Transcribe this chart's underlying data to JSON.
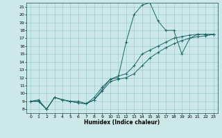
{
  "xlabel": "Humidex (Indice chaleur)",
  "bg_color": "#cce8ea",
  "grid_color": "#99cccc",
  "line_color": "#1a6666",
  "xlim": [
    -0.5,
    23.5
  ],
  "ylim": [
    7.5,
    21.5
  ],
  "xticks": [
    0,
    1,
    2,
    3,
    4,
    5,
    6,
    7,
    8,
    9,
    10,
    11,
    12,
    13,
    14,
    15,
    16,
    17,
    18,
    19,
    20,
    21,
    22,
    23
  ],
  "yticks": [
    8,
    9,
    10,
    11,
    12,
    13,
    14,
    15,
    16,
    17,
    18,
    19,
    20,
    21
  ],
  "series": [
    {
      "x": [
        0,
        1,
        2,
        3,
        4,
        5,
        6,
        7,
        8,
        9,
        10,
        11,
        12,
        13,
        14,
        15,
        16,
        17,
        18,
        19,
        20,
        21,
        22,
        23
      ],
      "y": [
        9.0,
        9.2,
        8.0,
        9.5,
        9.2,
        9.0,
        9.0,
        8.7,
        9.2,
        10.5,
        11.8,
        12.0,
        16.5,
        20.0,
        21.2,
        21.5,
        19.2,
        18.0,
        18.0,
        15.0,
        17.0,
        17.5,
        17.5,
        17.5
      ]
    },
    {
      "x": [
        0,
        1,
        2,
        3,
        4,
        5,
        6,
        7,
        8,
        9,
        10,
        11,
        12,
        13,
        14,
        15,
        16,
        17,
        18,
        19,
        20,
        21,
        22,
        23
      ],
      "y": [
        9.0,
        9.0,
        8.0,
        9.5,
        9.2,
        9.0,
        8.8,
        8.7,
        9.2,
        10.3,
        11.5,
        11.8,
        12.0,
        12.5,
        13.5,
        14.5,
        15.2,
        15.8,
        16.3,
        16.7,
        17.0,
        17.2,
        17.3,
        17.5
      ]
    },
    {
      "x": [
        0,
        1,
        2,
        3,
        4,
        5,
        6,
        7,
        8,
        9,
        10,
        11,
        12,
        13,
        14,
        15,
        16,
        17,
        18,
        19,
        20,
        21,
        22,
        23
      ],
      "y": [
        9.0,
        9.0,
        8.0,
        9.5,
        9.2,
        9.0,
        8.8,
        8.7,
        9.5,
        10.8,
        11.8,
        12.2,
        12.5,
        13.5,
        15.0,
        15.5,
        16.0,
        16.5,
        17.0,
        17.2,
        17.4,
        17.5,
        17.5,
        17.5
      ]
    }
  ]
}
